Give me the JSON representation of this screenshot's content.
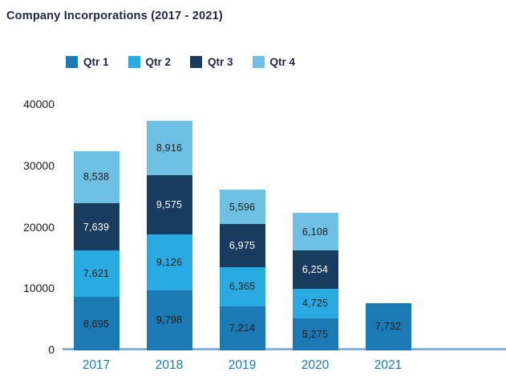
{
  "title": "Company Incorporations (2017 - 2021)",
  "colors": {
    "qtr1": "#1B79B4",
    "qtr2": "#29ABE2",
    "qtr3": "#173C60",
    "qtr4": "#6FC1E3",
    "axis_line": "#7FB5DA",
    "title_text": "#1F2440",
    "y_tick_text": "#1A1A1A",
    "x_tick_text": "#1B79B5"
  },
  "chart_data": {
    "type": "bar",
    "stacked": true,
    "title": "Company Incorporations (2017 - 2021)",
    "categories": [
      "2017",
      "2018",
      "2019",
      "2020",
      "2021"
    ],
    "series": [
      {
        "name": "Qtr 1",
        "color": "#1B79B4",
        "label_color": "#1A1A1A",
        "values": [
          8695,
          9798,
          7214,
          5275,
          7732
        ],
        "labels": [
          "8,695",
          "9,798",
          "7,214",
          "5,275",
          "7,732"
        ]
      },
      {
        "name": "Qtr 2",
        "color": "#29ABE2",
        "label_color": "#1A1A1A",
        "values": [
          7621,
          9126,
          6365,
          4725,
          null
        ],
        "labels": [
          "7,621",
          "9,126",
          "6,365",
          "4,725",
          ""
        ]
      },
      {
        "name": "Qtr 3",
        "color": "#173C60",
        "label_color": "#FFFFFF",
        "values": [
          7639,
          9575,
          6975,
          6254,
          null
        ],
        "labels": [
          "7,639",
          "9,575",
          "6,975",
          "6,254",
          ""
        ]
      },
      {
        "name": "Qtr 4",
        "color": "#6FC1E3",
        "label_color": "#1A1A1A",
        "values": [
          8538,
          8916,
          5596,
          6108,
          null
        ],
        "labels": [
          "8,538",
          "8,916",
          "5,596",
          "6,108",
          ""
        ]
      }
    ],
    "y_ticks": [
      0,
      10000,
      20000,
      30000,
      40000
    ],
    "y_tick_labels": [
      "0",
      "10000",
      "20000",
      "30000",
      "40000"
    ],
    "ylim": [
      0,
      40000
    ],
    "xlabel": "",
    "ylabel": "",
    "grid": false,
    "legend_position": "top"
  }
}
